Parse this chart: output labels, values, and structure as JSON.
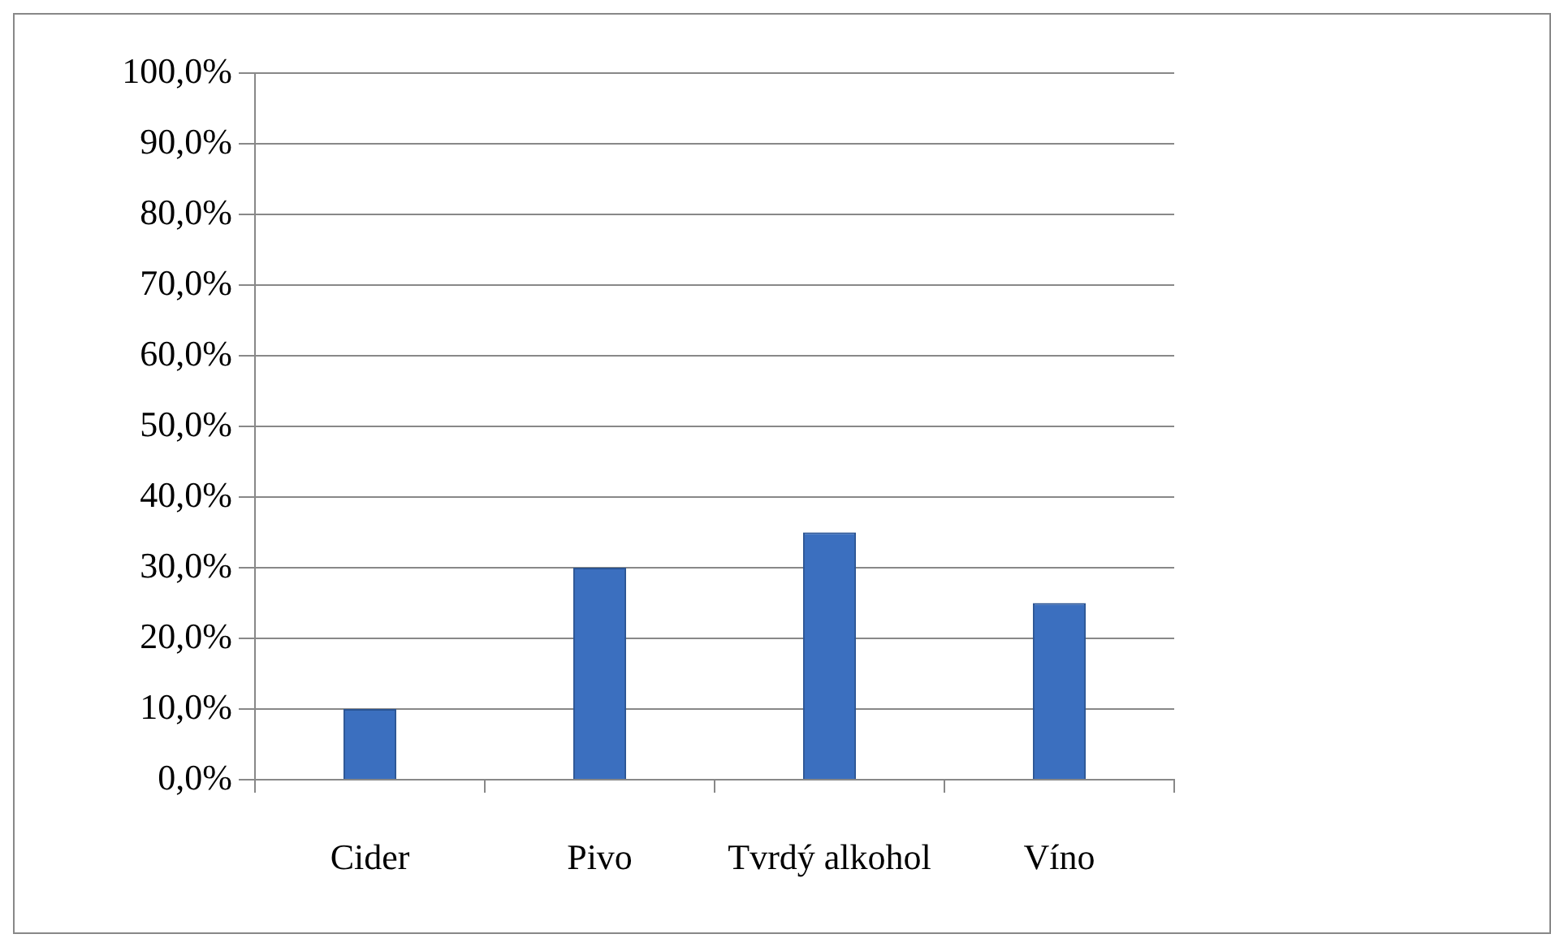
{
  "chart_data": {
    "type": "bar",
    "categories": [
      "Cider",
      "Pivo",
      "Tvrdý alkohol",
      "Víno"
    ],
    "values": [
      10,
      30,
      35,
      25
    ],
    "color": "#3b6fbf",
    "ylim": [
      0,
      100
    ],
    "yticks": [
      {
        "value": 0,
        "label": "0,0%"
      },
      {
        "value": 10,
        "label": "10,0%"
      },
      {
        "value": 20,
        "label": "20,0%"
      },
      {
        "value": 30,
        "label": "30,0%"
      },
      {
        "value": 40,
        "label": "40,0%"
      },
      {
        "value": 50,
        "label": "50,0%"
      },
      {
        "value": 60,
        "label": "60,0%"
      },
      {
        "value": 70,
        "label": "70,0%"
      },
      {
        "value": 80,
        "label": "80,0%"
      },
      {
        "value": 90,
        "label": "90,0%"
      },
      {
        "value": 100,
        "label": "100,0%"
      }
    ],
    "grid": "y",
    "legend": false
  }
}
